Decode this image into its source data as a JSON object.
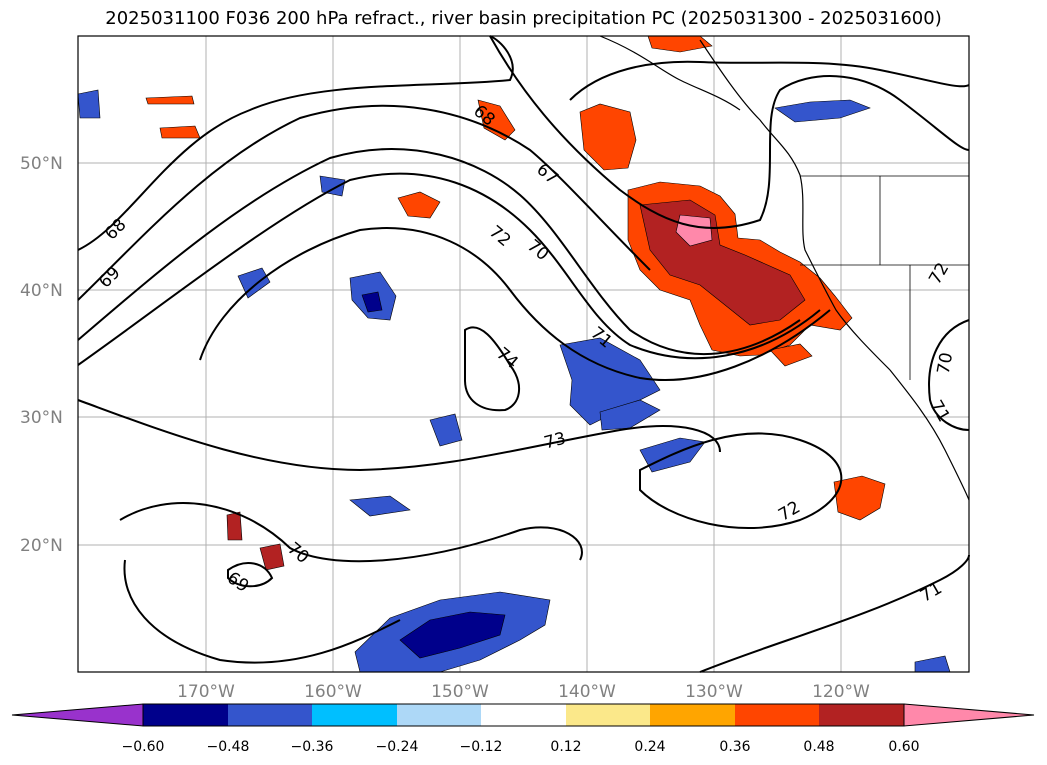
{
  "title": "2025031100 F036 200 hPa refract., river basin precipitation PC (2025031300 - 2025031600)",
  "lat_ticks": [
    "50°N",
    "40°N",
    "30°N",
    "20°N"
  ],
  "lon_ticks": [
    "170°W",
    "160°W",
    "150°W",
    "140°W",
    "130°W",
    "120°W"
  ],
  "colorbar": {
    "ticks": [
      "−0.60",
      "−0.48",
      "−0.36",
      "−0.24",
      "−0.12",
      "0.12",
      "0.24",
      "0.36",
      "0.48",
      "0.60"
    ],
    "colors": [
      "#9932cc",
      "#00008b",
      "#3455cc",
      "#00bfff",
      "#add8f7",
      "#ffffff",
      "#fbe88a",
      "#ffa500",
      "#ff4500",
      "#b22222",
      "#ff88aa"
    ]
  },
  "contour_labels": [
    "68",
    "67",
    "72",
    "70",
    "69",
    "71",
    "74",
    "73",
    "72",
    "70",
    "69",
    "70",
    "71",
    "71",
    "72",
    "68"
  ],
  "palette": {
    "neg_dark": "#00008b",
    "neg_mid": "#3455cc",
    "neg_light": "#00bfff",
    "pos_yellow": "#fbe88a",
    "pos_orange": "#ff4500",
    "pos_dark": "#b22222",
    "pos_pink": "#ff88aa"
  }
}
